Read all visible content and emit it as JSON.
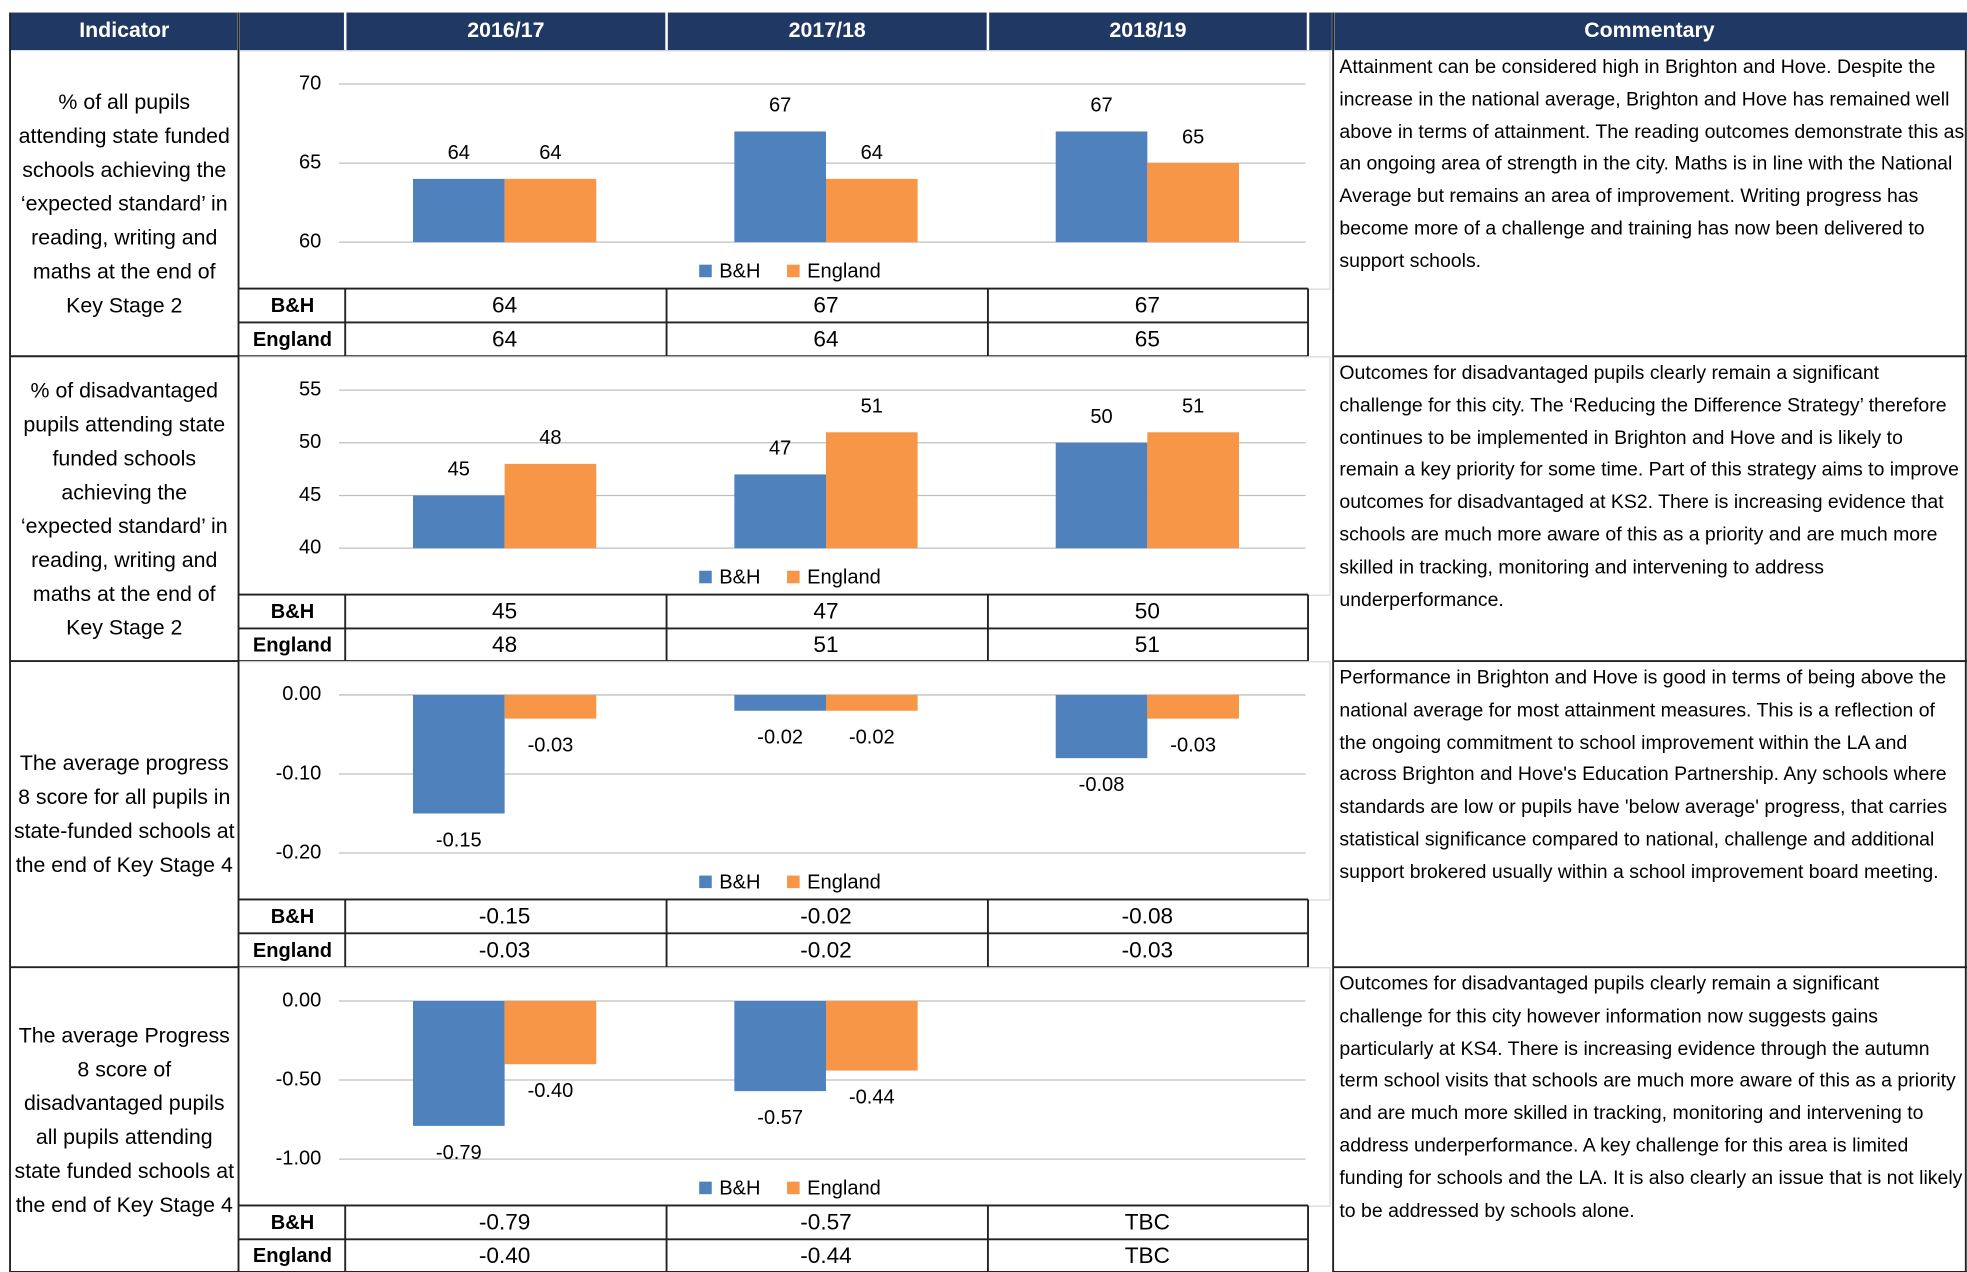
{
  "header": {
    "indicator": "Indicator",
    "years": [
      "2016/17",
      "2017/18",
      "2018/19"
    ],
    "commentary": "Commentary"
  },
  "rows": [
    {
      "indicator": "% of all pupils attending state funded schools achieving the ‘expected standard’ in reading, writing and maths at the end of Key Stage 2",
      "chart": {
        "type": "bar",
        "ylim": [
          60,
          70
        ],
        "yticks": [
          60,
          65,
          70
        ],
        "grid": true,
        "legend": "bottom",
        "series": [
          {
            "name": "B&H",
            "color": "#4f81bd",
            "values": [
              64,
              67,
              67
            ]
          },
          {
            "name": "England",
            "color": "#f79646",
            "values": [
              64,
              64,
              65
            ]
          }
        ]
      },
      "commentary": "Attainment can be considered high in Brighton and Hove. Despite the increase in the national average, Brighton and Hove has remained well above in terms of attainment. The reading outcomes demonstrate this as an ongoing area of strength in the city. Maths is in line with the National Average but remains an area of improvement. Writing progress has become more of a challenge and training has now been delivered to support schools."
    },
    {
      "indicator": "% of disadvantaged pupils attending state funded schools achieving the ‘expected standard’ in reading, writing and maths at the end of Key Stage 2",
      "chart": {
        "type": "bar",
        "ylim": [
          40,
          55
        ],
        "yticks": [
          40,
          45,
          50,
          55
        ],
        "grid": true,
        "legend": "bottom",
        "series": [
          {
            "name": "B&H",
            "color": "#4f81bd",
            "values": [
              45,
              47,
              50
            ]
          },
          {
            "name": "England",
            "color": "#f79646",
            "values": [
              48,
              51,
              51
            ]
          }
        ]
      },
      "commentary": "Outcomes for disadvantaged pupils clearly remain a significant challenge for this city. The ‘Reducing the Difference Strategy’ therefore continues to be implemented in Brighton and Hove and is likely to remain a key priority for some time. Part of this strategy aims to improve outcomes for disadvantaged at KS2. There is increasing evidence that schools are much more aware of this as a priority and are much more skilled in tracking, monitoring and intervening to address underperformance."
    },
    {
      "indicator": "The average progress 8 score for all pupils in state-funded schools at the end of Key Stage 4",
      "chart": {
        "type": "bar",
        "ylim": [
          -0.2,
          0
        ],
        "yticks": [
          {
            "value": -0.2,
            "label": "-0.20"
          },
          {
            "value": -0.1,
            "label": "-0.10"
          },
          {
            "value": 0,
            "label": "0.00"
          }
        ],
        "grid": true,
        "legend": "bottom",
        "series": [
          {
            "name": "B&H",
            "color": "#4f81bd",
            "values": [
              -0.15,
              -0.02,
              -0.08
            ]
          },
          {
            "name": "England",
            "color": "#f79646",
            "values": [
              -0.03,
              -0.02,
              -0.03
            ]
          }
        ]
      },
      "commentary": "Performance in Brighton and Hove is good in terms of being above the national average for most attainment measures. This is a reflection of the ongoing commitment to school improvement within the LA and across Brighton and Hove's Education Partnership. Any schools where standards are low or pupils have 'below average' progress, that carries statistical significance compared to national, challenge and additional support brokered usually within a school improvement board meeting."
    },
    {
      "indicator": "The average Progress 8 score of disadvantaged pupils all pupils attending state funded schools at the end of Key Stage 4",
      "chart": {
        "type": "bar",
        "ylim": [
          -1,
          0
        ],
        "yticks": [
          {
            "value": -1,
            "label": "-1.00"
          },
          {
            "value": -0.5,
            "label": "-0.50"
          },
          {
            "value": 0,
            "label": "0.00"
          }
        ],
        "grid": true,
        "legend": "bottom",
        "series": [
          {
            "name": "B&H",
            "color": "#4f81bd",
            "values": [
              -0.79,
              -0.57,
              null
            ],
            "value_labels": [
              "-0.79",
              "-0.57",
              "TBC"
            ]
          },
          {
            "name": "England",
            "color": "#f79646",
            "values": [
              -0.4,
              -0.44,
              null
            ],
            "value_labels": [
              "-0.40",
              "-0.44",
              "TBC"
            ]
          }
        ]
      },
      "commentary": "Outcomes for disadvantaged pupils clearly remain a significant challenge for this city however information now suggests gains particularly at KS4. There is increasing evidence through the autumn term school visits that schools are much more aware of this as a priority and are much more skilled in tracking, monitoring and intervening to address underperformance. A key challenge for this area is limited funding for schools and the LA. It is also clearly an issue that is not likely to be addressed by schools alone."
    }
  ]
}
